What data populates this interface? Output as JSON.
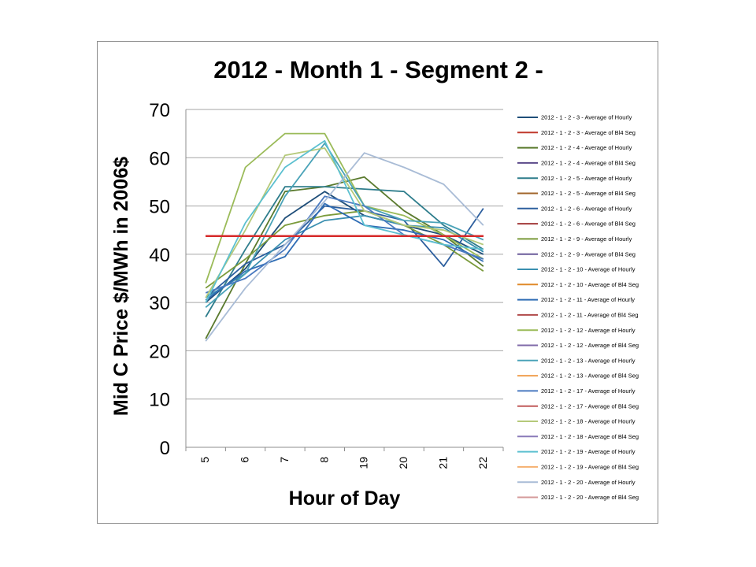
{
  "chart_data": {
    "type": "line",
    "title": "2012 - Month 1 - Segment 2 -",
    "xlabel": "Hour of Day",
    "ylabel": "Mid C Price $/MWh in 2006$",
    "categories": [
      "5",
      "6",
      "7",
      "8",
      "19",
      "20",
      "21",
      "22"
    ],
    "ylim": [
      0,
      70
    ],
    "yticks": [
      0,
      10,
      20,
      30,
      40,
      50,
      60,
      70
    ],
    "grid": true,
    "legend_position": "right",
    "series": [
      {
        "name": "2012 - 1 - 2 - 3 - Average of Hourly",
        "color": "#1f4e79",
        "values": [
          30,
          37,
          47.5,
          53,
          48,
          46,
          44,
          40
        ]
      },
      {
        "name": "2012 - 1 - 2 - 3 - Average of Bl4 Seg",
        "color": "#c0392b",
        "values": [
          43.8,
          43.8,
          43.8,
          43.8,
          43.8,
          43.8,
          43.8,
          43.8
        ]
      },
      {
        "name": "2012 - 1 - 2 - 4 - Average of Hourly",
        "color": "#5a7a2e",
        "values": [
          22.5,
          38,
          53,
          54,
          56,
          49,
          44,
          37.5
        ]
      },
      {
        "name": "2012 - 1 - 2 - 4 - Average of Bl4 Seg",
        "color": "#5b4a8a",
        "values": [
          43.8,
          43.8,
          43.8,
          43.8,
          43.8,
          43.8,
          43.8,
          43.8
        ]
      },
      {
        "name": "2012 - 1 - 2 - 5 - Average of Hourly",
        "color": "#2e7d8c",
        "values": [
          27,
          41,
          54,
          54,
          53.5,
          53,
          46,
          41
        ]
      },
      {
        "name": "2012 - 1 - 2 - 5 - Average of Bl4 Seg",
        "color": "#a0652a",
        "values": [
          43.8,
          43.8,
          43.8,
          43.8,
          43.8,
          43.8,
          43.8,
          43.8
        ]
      },
      {
        "name": "2012 - 1 - 2 - 6 - Average of Hourly",
        "color": "#2d5f9e",
        "values": [
          31,
          38,
          42,
          50,
          49,
          47,
          37.5,
          49.5
        ]
      },
      {
        "name": "2012 - 1 - 2 - 6 - Average of Bl4 Seg",
        "color": "#a33a3a",
        "values": [
          43.8,
          43.8,
          43.8,
          43.8,
          43.8,
          43.8,
          43.8,
          43.8
        ]
      },
      {
        "name": "2012 - 1 - 2 - 9 - Average of Hourly",
        "color": "#7a9a3a",
        "values": [
          33,
          39,
          46,
          48,
          49,
          46,
          42,
          36.5
        ]
      },
      {
        "name": "2012 - 1 - 2 - 9 - Average of Bl4 Seg",
        "color": "#6a5a9a",
        "values": [
          43.8,
          43.8,
          43.8,
          43.8,
          43.8,
          43.8,
          43.8,
          43.8
        ]
      },
      {
        "name": "2012 - 1 - 2 - 10 - Average of Hourly",
        "color": "#3a8fb0",
        "values": [
          31,
          36,
          43,
          47,
          48,
          46,
          45.5,
          40.5
        ]
      },
      {
        "name": "2012 - 1 - 2 - 10 - Average of Bl4 Seg",
        "color": "#e08a2a",
        "values": [
          43.8,
          43.8,
          43.8,
          43.8,
          43.8,
          43.8,
          43.8,
          43.8
        ]
      },
      {
        "name": "2012 - 1 - 2 - 11 - Average of Hourly",
        "color": "#2f6db5",
        "values": [
          30.5,
          36.5,
          39.5,
          50.5,
          46,
          45,
          43,
          38.5
        ]
      },
      {
        "name": "2012 - 1 - 2 - 11 - Average of Bl4 Seg",
        "color": "#b04a4a",
        "values": [
          43.8,
          43.8,
          43.8,
          43.8,
          43.8,
          43.8,
          43.8,
          43.8
        ]
      },
      {
        "name": "2012 - 1 - 2 - 12 - Average of Hourly",
        "color": "#9bbb59",
        "values": [
          34,
          58,
          65,
          65,
          50,
          48,
          44,
          39
        ]
      },
      {
        "name": "2012 - 1 - 2 - 12 - Average of Bl4 Seg",
        "color": "#7f6aa8",
        "values": [
          43.8,
          43.8,
          43.8,
          43.8,
          43.8,
          43.8,
          43.8,
          43.8
        ]
      },
      {
        "name": "2012 - 1 - 2 - 13 - Average of Hourly",
        "color": "#4aa3b8",
        "values": [
          29,
          36,
          52,
          63,
          50,
          47,
          46.5,
          43
        ]
      },
      {
        "name": "2012 - 1 - 2 - 13 - Average of Bl4 Seg",
        "color": "#f0a050",
        "values": [
          43.8,
          43.8,
          43.8,
          43.8,
          43.8,
          43.8,
          43.8,
          43.8
        ]
      },
      {
        "name": "2012 - 1 - 2 - 17 - Average of Hourly",
        "color": "#4a7ac0",
        "values": [
          32,
          35,
          41,
          52,
          50,
          44,
          42,
          39
        ]
      },
      {
        "name": "2012 - 1 - 2 - 17 - Average of Bl4 Seg",
        "color": "#c05a5a",
        "values": [
          43.8,
          43.8,
          43.8,
          43.8,
          43.8,
          43.8,
          43.8,
          43.8
        ]
      },
      {
        "name": "2012 - 1 - 2 - 18 - Average of Hourly",
        "color": "#b5c97a",
        "values": [
          31,
          45,
          60.5,
          62,
          49,
          46,
          45,
          42
        ]
      },
      {
        "name": "2012 - 1 - 2 - 18 - Average of Bl4 Seg",
        "color": "#8a7ab8",
        "values": [
          43.8,
          43.8,
          43.8,
          43.8,
          43.8,
          43.8,
          43.8,
          43.8
        ]
      },
      {
        "name": "2012 - 1 - 2 - 19 - Average of Hourly",
        "color": "#5cc0d0",
        "values": [
          30,
          46.5,
          58,
          63.5,
          46,
          44,
          42,
          41
        ]
      },
      {
        "name": "2012 - 1 - 2 - 19 - Average of Bl4 Seg",
        "color": "#f5b070",
        "values": [
          43.8,
          43.8,
          43.8,
          43.8,
          43.8,
          43.8,
          43.8,
          43.8
        ]
      },
      {
        "name": "2012 - 1 - 2 - 20 - Average of Hourly",
        "color": "#a9bcd6",
        "values": [
          22,
          33,
          42,
          51,
          61,
          58,
          54.5,
          46
        ]
      },
      {
        "name": "2012 - 1 - 2 - 20 - Average of Bl4 Seg",
        "color": "#d49a9a",
        "values": [
          43.8,
          43.8,
          43.8,
          43.8,
          43.8,
          43.8,
          43.8,
          43.8
        ]
      }
    ]
  }
}
